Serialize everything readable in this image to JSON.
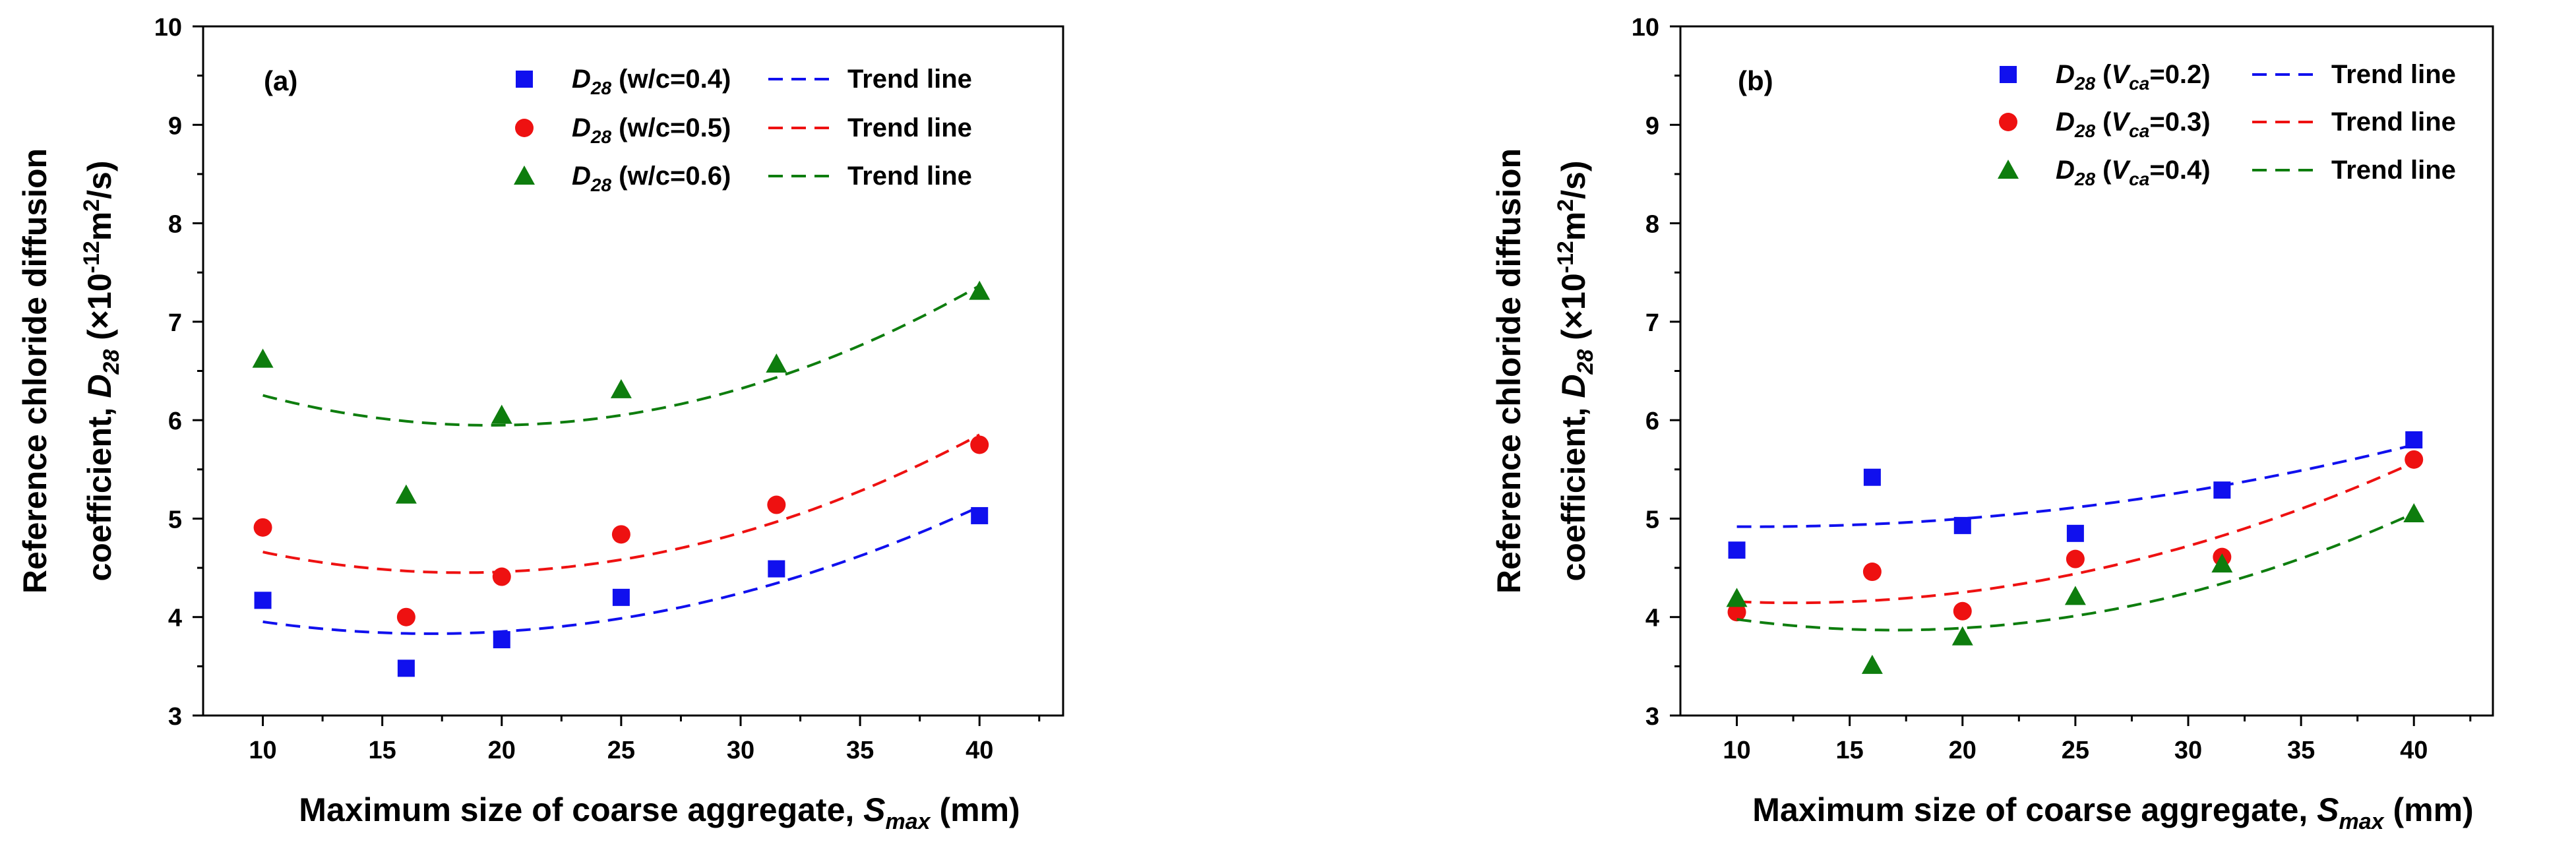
{
  "chart_data": [
    {
      "type": "scatter",
      "panel_label": "(a)",
      "ylabel_line1": "Reference chloride diffusion",
      "ylabel_line2_prefix": "coefficient, ",
      "ylabel_var": "D",
      "ylabel_var_sub": "28",
      "ylabel_unit_open": " (×10",
      "ylabel_unit_exp": "-12",
      "ylabel_unit_mid": "m",
      "ylabel_unit_exp2": "2",
      "ylabel_unit_close": "/s)",
      "xlabel_prefix": "Maximum size of coarse aggregate, ",
      "xlabel_var": "S",
      "xlabel_var_sub": "max",
      "xlabel_suffix": " (mm)",
      "xlim": [
        7.5,
        43.5
      ],
      "ylim": [
        3,
        10
      ],
      "xticks": [
        10,
        15,
        20,
        25,
        30,
        35,
        40
      ],
      "yticks": [
        3,
        4,
        5,
        6,
        7,
        8,
        9,
        10
      ],
      "x": [
        10,
        16,
        20,
        25,
        31.5,
        40
      ],
      "series": [
        {
          "name": "D28 (w/c=0.4)",
          "legend_var": "D",
          "legend_sub": "28",
          "legend_param": "w/c",
          "legend_param_sub": "",
          "legend_value": "=0.4",
          "trend_label": "Trend line",
          "marker": "square",
          "color": "#1010ee",
          "values": [
            4.17,
            3.48,
            3.77,
            4.2,
            4.49,
            5.03
          ],
          "trend": [
            3.95,
            3.84,
            3.85,
            3.98,
            4.35,
            5.12
          ]
        },
        {
          "name": "D28 (w/c=0.5)",
          "legend_var": "D",
          "legend_sub": "28",
          "legend_param": "w/c",
          "legend_param_sub": "",
          "legend_value": "=0.5",
          "trend_label": "Trend line",
          "marker": "circle",
          "color": "#ee1111",
          "values": [
            4.91,
            4.0,
            4.41,
            4.84,
            5.14,
            5.75
          ],
          "trend": [
            4.65,
            4.48,
            4.47,
            4.58,
            4.95,
            5.86
          ]
        },
        {
          "name": "D28 (w/c=0.6)",
          "legend_var": "D",
          "legend_sub": "28",
          "legend_param": "w/c",
          "legend_param_sub": "",
          "legend_value": "=0.6",
          "trend_label": "Trend line",
          "marker": "triangle",
          "color": "#0e7d0e",
          "values": [
            6.62,
            5.24,
            6.05,
            6.31,
            6.57,
            7.31
          ],
          "trend": [
            6.27,
            5.97,
            5.93,
            6.05,
            6.47,
            7.35
          ]
        }
      ]
    },
    {
      "type": "scatter",
      "panel_label": "(b)",
      "ylabel_line1": "Reference chloride diffusion",
      "ylabel_line2_prefix": "coefficient, ",
      "ylabel_var": "D",
      "ylabel_var_sub": "28",
      "ylabel_unit_open": " (×10",
      "ylabel_unit_exp": "-12",
      "ylabel_unit_mid": "m",
      "ylabel_unit_exp2": "2",
      "ylabel_unit_close": "/s)",
      "xlabel_prefix": "Maximum size of coarse aggregate, ",
      "xlabel_var": "S",
      "xlabel_var_sub": "max",
      "xlabel_suffix": " (mm)",
      "xlim": [
        7.5,
        43.5
      ],
      "ylim": [
        3,
        10
      ],
      "xticks": [
        10,
        15,
        20,
        25,
        30,
        35,
        40
      ],
      "yticks": [
        3,
        4,
        5,
        6,
        7,
        8,
        9,
        10
      ],
      "x": [
        10,
        16,
        20,
        25,
        31.5,
        40
      ],
      "series": [
        {
          "name": "D28 (Vca=0.2)",
          "legend_var": "D",
          "legend_sub": "28",
          "legend_param": "V",
          "legend_param_sub": "ca",
          "legend_value": "=0.2",
          "trend_label": "Trend line",
          "marker": "square",
          "color": "#1010ee",
          "values": [
            4.68,
            5.42,
            4.93,
            4.85,
            5.29,
            5.8
          ],
          "trend": [
            4.92,
            4.94,
            5.0,
            5.12,
            5.33,
            5.75
          ]
        },
        {
          "name": "D28 (Vca=0.3)",
          "legend_var": "D",
          "legend_sub": "28",
          "legend_param": "V",
          "legend_param_sub": "ca",
          "legend_value": "=0.3",
          "trend_label": "Trend line",
          "marker": "circle",
          "color": "#ee1111",
          "values": [
            4.05,
            4.46,
            4.06,
            4.59,
            4.61,
            5.6
          ],
          "trend": [
            4.15,
            4.17,
            4.26,
            4.45,
            4.8,
            5.58
          ]
        },
        {
          "name": "D28 (Vca=0.4)",
          "legend_var": "D",
          "legend_sub": "28",
          "legend_param": "V",
          "legend_param_sub": "ca",
          "legend_value": "=0.4",
          "trend_label": "Trend line",
          "marker": "triangle",
          "color": "#0e7d0e",
          "values": [
            4.19,
            3.51,
            3.8,
            4.21,
            4.54,
            5.05
          ],
          "trend": [
            3.98,
            3.87,
            3.88,
            4.01,
            4.35,
            5.05
          ]
        }
      ]
    }
  ]
}
